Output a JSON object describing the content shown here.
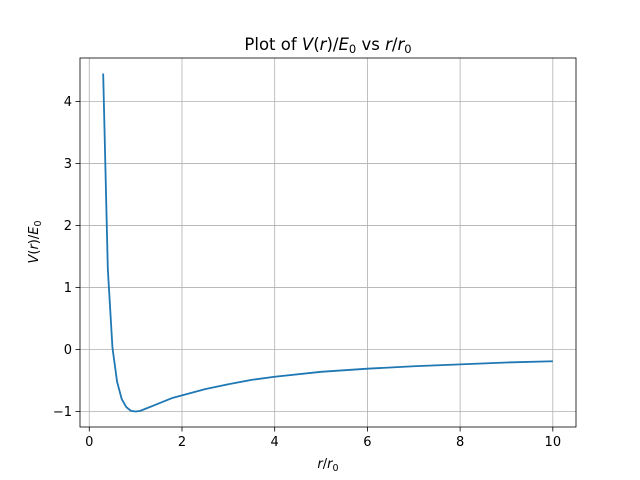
{
  "chart_data": {
    "type": "line",
    "title": {
      "prefix": "Plot of ",
      "v": "V",
      "paren_open": "(",
      "r": "r",
      "paren_close": ")/",
      "e": "E",
      "e_sub": "0",
      "vs": " vs ",
      "r2": "r",
      "slash": "/",
      "r3": "r",
      "r_sub": "0"
    },
    "xlabel": {
      "r": "r",
      "slash": "/",
      "r0": "r",
      "sub": "0"
    },
    "ylabel": {
      "v": "V",
      "open": "(",
      "r": "r",
      "close": ")/",
      "e": "E",
      "sub": "0"
    },
    "xlim": [
      -0.2,
      10.5
    ],
    "ylim": [
      -1.25,
      4.7
    ],
    "xticks": [
      0,
      2,
      4,
      6,
      8,
      10
    ],
    "xtick_labels": [
      "0",
      "2",
      "4",
      "6",
      "8",
      "10"
    ],
    "yticks": [
      -1,
      0,
      1,
      2,
      3,
      4
    ],
    "ytick_labels": [
      "−1",
      "0",
      "1",
      "2",
      "3",
      "4"
    ],
    "grid": true,
    "series": [
      {
        "color": "#1f77b4",
        "x": [
          0.3,
          0.4,
          0.5,
          0.6,
          0.7,
          0.8,
          0.9,
          1.0,
          1.1,
          1.2,
          1.4,
          1.6,
          1.8,
          2.0,
          2.5,
          3.0,
          3.5,
          4.0,
          5.0,
          6.0,
          7.0,
          8.0,
          9.0,
          10.0
        ],
        "y": [
          4.45,
          1.3,
          0.03,
          -0.52,
          -0.8,
          -0.93,
          -0.99,
          -1.0,
          -0.99,
          -0.96,
          -0.9,
          -0.84,
          -0.78,
          -0.74,
          -0.64,
          -0.56,
          -0.49,
          -0.44,
          -0.36,
          -0.31,
          -0.27,
          -0.24,
          -0.21,
          -0.19
        ]
      }
    ]
  }
}
